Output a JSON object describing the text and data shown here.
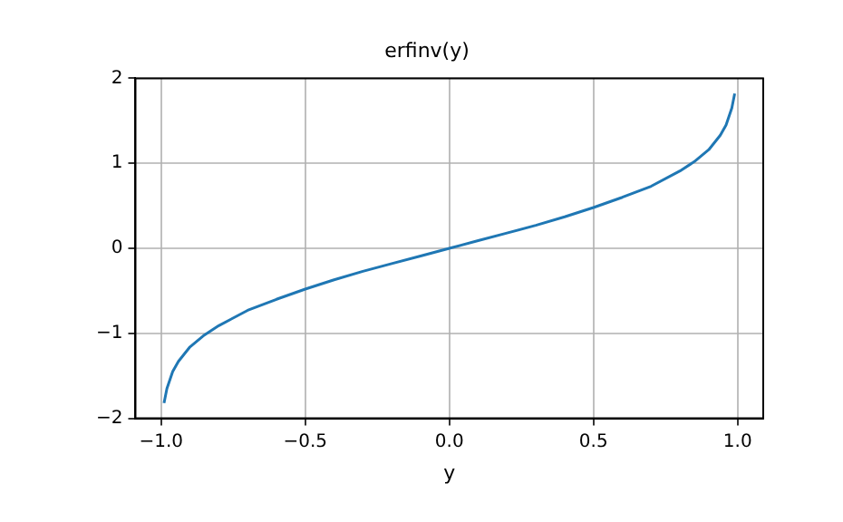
{
  "chart_data": {
    "type": "line",
    "title": "erfinv(y)",
    "xlabel": "y",
    "x": [
      -0.99,
      -0.98,
      -0.96,
      -0.94,
      -0.9,
      -0.85,
      -0.8,
      -0.7,
      -0.6,
      -0.5,
      -0.4,
      -0.3,
      -0.2,
      -0.1,
      0,
      0.1,
      0.2,
      0.3,
      0.4,
      0.5,
      0.6,
      0.7,
      0.8,
      0.85,
      0.9,
      0.94,
      0.96,
      0.98,
      0.99
    ],
    "series": [
      {
        "color": "#1f77b4",
        "values": [
          -1.82,
          -1.65,
          -1.45,
          -1.33,
          -1.16,
          -1.02,
          -0.91,
          -0.73,
          -0.6,
          -0.48,
          -0.37,
          -0.27,
          -0.18,
          -0.09,
          0,
          0.09,
          0.18,
          0.27,
          0.37,
          0.48,
          0.6,
          0.73,
          0.91,
          1.02,
          1.16,
          1.33,
          1.45,
          1.65,
          1.82
        ]
      }
    ],
    "xlim": [
      -1.089,
      1.089
    ],
    "ylim": [
      -2,
      2
    ],
    "xticks": [
      {
        "value": -1,
        "label": "−1.0"
      },
      {
        "value": -0.5,
        "label": "−0.5"
      },
      {
        "value": 0,
        "label": "0.0"
      },
      {
        "value": 0.5,
        "label": "0.5"
      },
      {
        "value": 1,
        "label": "1.0"
      }
    ],
    "yticks": [
      {
        "value": -2,
        "label": "−2"
      },
      {
        "value": -1,
        "label": "−1"
      },
      0,
      1,
      2
    ],
    "grid": true,
    "marker": "none",
    "line_style": "solid",
    "legend": false
  }
}
